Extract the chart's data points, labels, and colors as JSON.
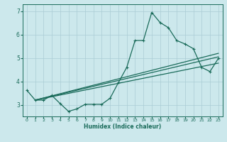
{
  "title": "",
  "xlabel": "Humidex (Indice chaleur)",
  "xlim": [
    -0.5,
    23.5
  ],
  "ylim": [
    2.5,
    7.3
  ],
  "yticks": [
    3,
    4,
    5,
    6,
    7
  ],
  "xticks": [
    0,
    1,
    2,
    3,
    4,
    5,
    6,
    7,
    8,
    9,
    10,
    11,
    12,
    13,
    14,
    15,
    16,
    17,
    18,
    19,
    20,
    21,
    22,
    23
  ],
  "bg_color": "#cce8ec",
  "grid_color": "#aaccd4",
  "line_color": "#1a6b5a",
  "data_x": [
    0,
    1,
    2,
    3,
    4,
    5,
    6,
    7,
    8,
    9,
    10,
    11,
    12,
    13,
    14,
    15,
    16,
    17,
    18,
    19,
    20,
    21,
    22,
    23
  ],
  "data_y": [
    3.62,
    3.2,
    3.2,
    3.4,
    3.05,
    2.72,
    2.82,
    3.02,
    3.02,
    3.02,
    3.28,
    3.95,
    4.6,
    5.75,
    5.75,
    6.95,
    6.52,
    6.3,
    5.75,
    5.6,
    5.4,
    4.6,
    4.42,
    4.98
  ],
  "reg_lines": [
    {
      "x": [
        1,
        23
      ],
      "y": [
        3.2,
        5.2
      ]
    },
    {
      "x": [
        1,
        23
      ],
      "y": [
        3.2,
        5.05
      ]
    },
    {
      "x": [
        1,
        23
      ],
      "y": [
        3.2,
        4.78
      ]
    }
  ]
}
